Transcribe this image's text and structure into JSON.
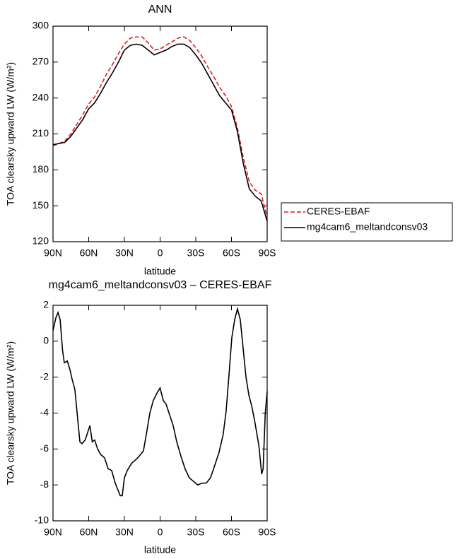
{
  "chart_data": [
    {
      "type": "line",
      "title": "ANN",
      "x_label": "latitude",
      "y_label": "TOA clearsky upward LW (W/m²)",
      "x": [
        90,
        85,
        80,
        75,
        70,
        65,
        60,
        55,
        50,
        45,
        40,
        35,
        30,
        25,
        20,
        15,
        10,
        5,
        0,
        -5,
        -10,
        -15,
        -20,
        -25,
        -30,
        -35,
        -40,
        -45,
        -50,
        -55,
        -60,
        -65,
        -70,
        -75,
        -80,
        -85,
        -90
      ],
      "series": [
        {
          "name": "CERES-EBAF",
          "color": "#e31a1c",
          "line_style": "dashed",
          "values": [
            200,
            202,
            204,
            210,
            218,
            226,
            235,
            241,
            250,
            260,
            268,
            277,
            285,
            290,
            291,
            291,
            286,
            280,
            281,
            284,
            287,
            290,
            291,
            288,
            282,
            275,
            266,
            258,
            249,
            242,
            233,
            215,
            190,
            170,
            163,
            160,
            140
          ]
        },
        {
          "name": "mg4cam6_meltandconsv03",
          "color": "#000000",
          "line_style": "solid",
          "values": [
            201,
            202,
            203,
            208,
            215,
            222,
            231,
            236,
            244,
            253,
            261,
            270,
            280,
            284,
            285,
            284,
            280,
            276,
            278,
            280,
            283,
            285,
            285,
            282,
            276,
            269,
            260,
            251,
            242,
            236,
            230,
            212,
            185,
            164,
            158,
            154,
            137
          ]
        }
      ],
      "xlim": [
        90,
        -90
      ],
      "xticks": [
        {
          "value": 90,
          "label": "90N"
        },
        {
          "value": 60,
          "label": "60N"
        },
        {
          "value": 30,
          "label": "30N"
        },
        0,
        {
          "value": -30,
          "label": "30S"
        },
        {
          "value": -60,
          "label": "60S"
        },
        {
          "value": -90,
          "label": "90S"
        }
      ],
      "ylim": [
        120,
        300
      ],
      "yticks": [
        120,
        150,
        180,
        210,
        240,
        270,
        300
      ],
      "legend": "outside-right"
    },
    {
      "type": "line",
      "title": "mg4cam6_meltandconsv03 – CERES-EBAF",
      "x_label": "latitude",
      "y_label": "TOA clearsky upward LW (W/m²)",
      "x": [
        90,
        87.6,
        85.8,
        84,
        82,
        80.5,
        78,
        75.7,
        74,
        71.6,
        69,
        67.4,
        65.6,
        63,
        61,
        59,
        57,
        55,
        52.5,
        50,
        46.6,
        43.7,
        40.7,
        37.7,
        34.7,
        33.5,
        31.8,
        30,
        27.6,
        24,
        20.5,
        17.5,
        14,
        11.6,
        8.6,
        5.7,
        2.7,
        0,
        -2.7,
        -5,
        -8,
        -11,
        -14,
        -17.5,
        -21,
        -24.5,
        -28,
        -31.6,
        -35.3,
        -38.8,
        -42.4,
        -46,
        -49.5,
        -53,
        -55.5,
        -58,
        -60.3,
        -62.7,
        -65,
        -67.4,
        -69.8,
        -72.2,
        -74.6,
        -77,
        -79.4,
        -83,
        -85.4,
        -86.6,
        -88.4,
        -90
      ],
      "series": [
        {
          "color": "#000000",
          "line_style": "solid",
          "values": [
            0.6,
            1.3,
            1.6,
            1.2,
            -0.5,
            -1.2,
            -1.1,
            -1.6,
            -2.1,
            -2.7,
            -4.5,
            -5.6,
            -5.7,
            -5.5,
            -5.1,
            -4.7,
            -5.6,
            -5.5,
            -6,
            -6.3,
            -6.5,
            -7.1,
            -7.2,
            -7.9,
            -8.4,
            -8.6,
            -8.6,
            -7.6,
            -7.2,
            -6.8,
            -6.6,
            -6.4,
            -6.1,
            -5.2,
            -4.0,
            -3.3,
            -2.9,
            -2.6,
            -3.3,
            -3.5,
            -4.1,
            -4.7,
            -5.6,
            -6.4,
            -7.1,
            -7.6,
            -7.8,
            -8.0,
            -7.9,
            -7.9,
            -7.6,
            -6.9,
            -6.2,
            -5.2,
            -3.9,
            -1.8,
            0.2,
            1.2,
            1.8,
            1.2,
            -0.4,
            -2.0,
            -3.0,
            -3.6,
            -4.4,
            -5.8,
            -7.4,
            -7.1,
            -4.0,
            -2.8
          ]
        }
      ],
      "xlim": [
        90,
        -90
      ],
      "xticks": [
        {
          "value": 90,
          "label": "90N"
        },
        {
          "value": 60,
          "label": "60N"
        },
        {
          "value": 30,
          "label": "30N"
        },
        0,
        {
          "value": -30,
          "label": "30S"
        },
        {
          "value": -60,
          "label": "60S"
        },
        {
          "value": -90,
          "label": "90S"
        }
      ],
      "ylim": [
        -10,
        2
      ],
      "yticks": [
        -10,
        -8,
        -6,
        -4,
        -2,
        0,
        2
      ]
    }
  ]
}
